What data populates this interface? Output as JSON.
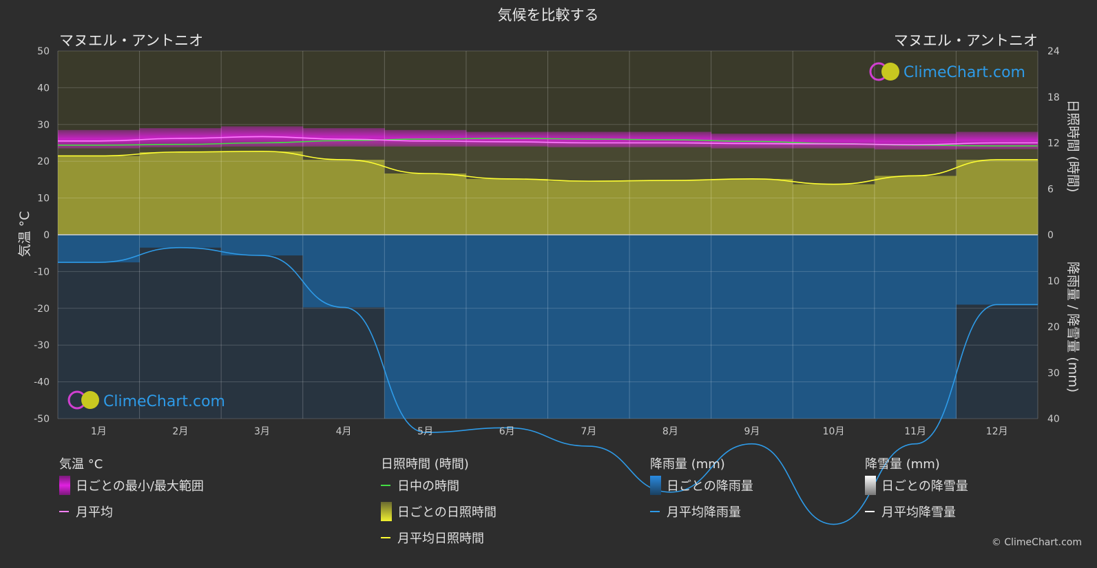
{
  "title": "気候を比較する",
  "location_left": "マヌエル・アントニオ",
  "location_right": "マヌエル・アントニオ",
  "watermark": "ClimeChart.com",
  "copyright": "© ClimeChart.com",
  "colors": {
    "background": "#2d2d2d",
    "temp_range": "#e020e0",
    "temp_avg": "#ff80ff",
    "daylight": "#44dd44",
    "sunshine_fill": "#a6a636",
    "sunshine_line": "#ffff33",
    "rain_fill": "#1e5a8c",
    "rain_line": "#2e9be8",
    "snow_line": "#ffffff"
  },
  "legend": {
    "temp": {
      "heading": "気温 °C",
      "range": "日ごとの最小/最大範囲",
      "avg": "月平均"
    },
    "sun": {
      "heading": "日照時間 (時間)",
      "daylight": "日中の時間",
      "daily": "日ごとの日照時間",
      "avg": "月平均日照時間"
    },
    "rain": {
      "heading": "降雨量 (mm)",
      "daily": "日ごとの降雨量",
      "avg": "月平均降雨量"
    },
    "snow": {
      "heading": "降雪量 (mm)",
      "daily": "日ごとの降雪量",
      "avg": "月平均降雪量"
    }
  },
  "chart_data": {
    "type": "line",
    "categories": [
      "1月",
      "2月",
      "3月",
      "4月",
      "5月",
      "6月",
      "7月",
      "8月",
      "9月",
      "10月",
      "11月",
      "12月"
    ],
    "axes": {
      "left": {
        "label": "気温 °C",
        "ticks": [
          50,
          40,
          30,
          20,
          10,
          0,
          -10,
          -20,
          -30,
          -40,
          -50
        ],
        "range": [
          -50,
          50
        ]
      },
      "right_top": {
        "label": "日照時間 (時間)",
        "ticks": [
          24,
          18,
          12,
          6,
          0
        ],
        "range": [
          0,
          24
        ]
      },
      "right_bottom": {
        "label": "降雨量 / 降雪量 (mm)",
        "ticks": [
          0,
          10,
          20,
          30,
          40
        ],
        "range": [
          0,
          40
        ]
      }
    },
    "grid": true,
    "series": [
      {
        "name": "日ごとの最小/最大範囲",
        "unit": "°C",
        "min": [
          23.5,
          23.8,
          24.0,
          24.0,
          24.0,
          24.0,
          23.8,
          23.8,
          23.5,
          23.5,
          23.2,
          23.3
        ],
        "max": [
          28.5,
          29.0,
          29.5,
          29.0,
          28.5,
          28.0,
          28.0,
          28.0,
          27.5,
          27.5,
          27.5,
          28.0
        ]
      },
      {
        "name": "月平均",
        "unit": "°C",
        "values": [
          25.5,
          26.2,
          26.7,
          26.0,
          25.5,
          25.3,
          25.0,
          25.0,
          24.8,
          24.7,
          24.5,
          25.0
        ]
      },
      {
        "name": "日中の時間",
        "unit": "時間",
        "values": [
          11.7,
          11.8,
          12.0,
          12.3,
          12.5,
          12.6,
          12.5,
          12.4,
          12.2,
          11.9,
          11.7,
          11.6
        ]
      },
      {
        "name": "月平均日照時間",
        "unit": "時間",
        "values": [
          10.3,
          10.8,
          10.9,
          9.8,
          8.0,
          7.3,
          7.0,
          7.1,
          7.3,
          6.6,
          7.7,
          9.8
        ]
      },
      {
        "name": "月平均降雨量",
        "unit": "mm",
        "values": [
          6.0,
          2.8,
          4.5,
          15.8,
          43.0,
          42.0,
          46.0,
          56.0,
          45.5,
          63.0,
          45.5,
          15.2
        ]
      },
      {
        "name": "月平均降雪量",
        "unit": "mm",
        "values": [
          0,
          0,
          0,
          0,
          0,
          0,
          0,
          0,
          0,
          0,
          0,
          0
        ]
      }
    ]
  }
}
